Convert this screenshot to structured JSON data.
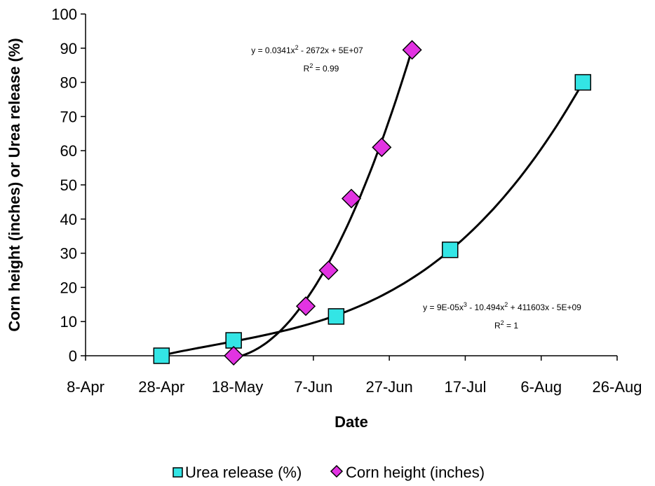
{
  "chart_data": {
    "type": "scatter",
    "title": "",
    "xlabel": "Date",
    "ylabel": "Corn height (inches) or Urea release (%)",
    "xlim": [
      "8-Apr",
      "26-Aug"
    ],
    "ylim": [
      0,
      100
    ],
    "x_ticks": [
      "8-Apr",
      "28-Apr",
      "18-May",
      "7-Jun",
      "27-Jun",
      "17-Jul",
      "6-Aug",
      "26-Aug"
    ],
    "y_ticks": [
      0,
      10,
      20,
      30,
      40,
      50,
      60,
      70,
      80,
      90,
      100
    ],
    "grid": false,
    "legend_position": "bottom",
    "series": [
      {
        "name": "Urea release (%)",
        "marker": "square",
        "color": "#33e5e5",
        "points": [
          {
            "x": "28-Apr",
            "y": 0
          },
          {
            "x": "17-May",
            "y": 4.5
          },
          {
            "x": "13-Jun",
            "y": 11.5
          },
          {
            "x": "13-Jul",
            "y": 31
          },
          {
            "x": "17-Aug",
            "y": 80
          }
        ]
      },
      {
        "name": "Corn height (inches)",
        "marker": "diamond",
        "color": "#e233e2",
        "points": [
          {
            "x": "17-May",
            "y": 0
          },
          {
            "x": "5-Jun",
            "y": 14.5
          },
          {
            "x": "11-Jun",
            "y": 25
          },
          {
            "x": "17-Jun",
            "y": 46
          },
          {
            "x": "25-Jun",
            "y": 61
          },
          {
            "x": "3-Jul",
            "y": 89.5
          }
        ]
      }
    ],
    "trendlines": [
      {
        "series": "Corn height (inches)",
        "equation": "y = 0.0341x² - 2672x + 5E+07",
        "eq_base": "y = 0.0341x",
        "eq_sup1": "2",
        "eq_rest": " - 2672x + 5E+07",
        "r2_base": "R",
        "r2_sup": "2",
        "r2_rest": " = 0.99"
      },
      {
        "series": "Urea release (%)",
        "equation": "y = 9E-05x³ - 10.494x² + 411603x - 5E+09",
        "eq_base": "y = 9E-05x",
        "eq_sup1": "3",
        "eq_mid": " - 10.494x",
        "eq_sup2": "2",
        "eq_rest": " + 411603x - 5E+09",
        "r2_base": "R",
        "r2_sup": "2",
        "r2_rest": " = 1"
      }
    ]
  }
}
